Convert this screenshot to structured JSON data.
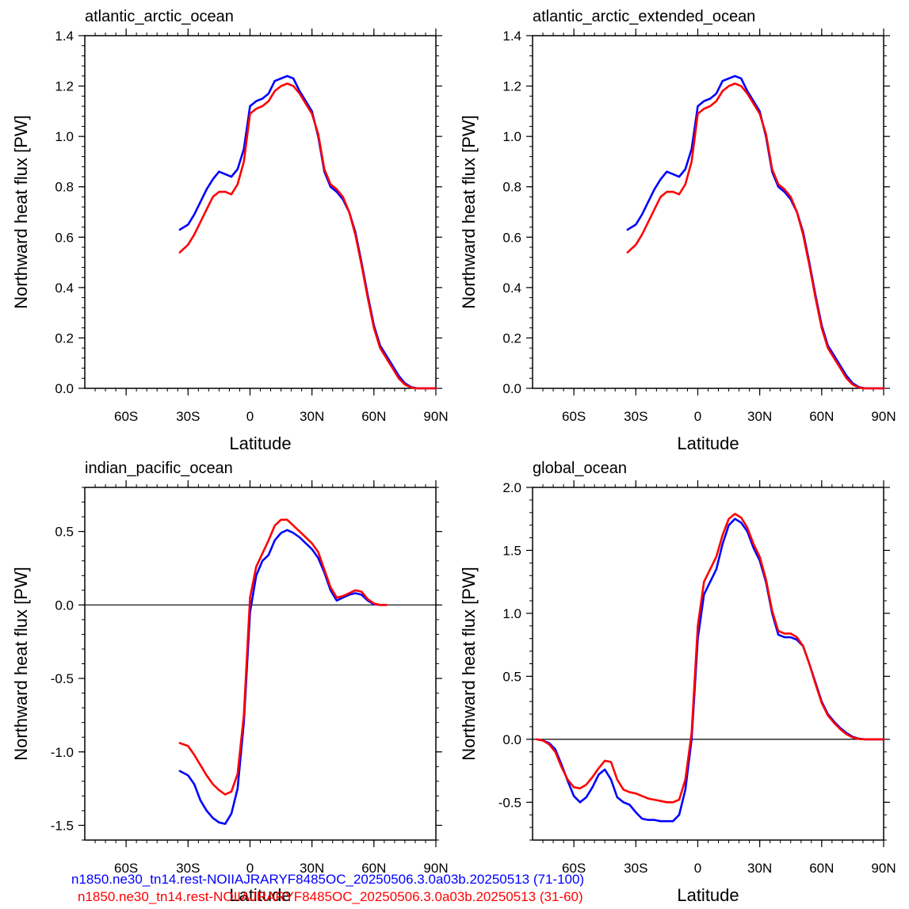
{
  "chart_data": [
    {
      "type": "line",
      "title": "atlantic_arctic_ocean",
      "xlabel": "Latitude",
      "ylabel": "Northward heat flux [PW]",
      "xlim": [
        -80,
        90
      ],
      "ylim": [
        0,
        1.4
      ],
      "xticks": [
        -60,
        -30,
        0,
        30,
        60,
        90
      ],
      "xtick_labels": [
        "60S",
        "30S",
        "0",
        "30N",
        "60N",
        "90N"
      ],
      "yticks": [
        0,
        0.2,
        0.4,
        0.6,
        0.8,
        1.0,
        1.2,
        1.4
      ],
      "ytick_labels": [
        "0.0",
        "0.2",
        "0.4",
        "0.6",
        "0.8",
        "1.0",
        "1.2",
        "1.4"
      ],
      "zero_line": false,
      "series": [
        {
          "name": "n1850.ne30_tn14.rest-NOIIAJRARYF8485OC_20250506.3.0a03b.20250513 (71-100)",
          "color": "#0000ff",
          "x": [
            -34,
            -30,
            -27,
            -24,
            -21,
            -18,
            -15,
            -12,
            -9,
            -6,
            -3,
            0,
            3,
            6,
            9,
            12,
            15,
            18,
            21,
            24,
            27,
            30,
            33,
            36,
            39,
            42,
            45,
            48,
            51,
            54,
            57,
            60,
            63,
            66,
            69,
            72,
            75,
            78,
            81,
            84,
            87,
            90
          ],
          "y": [
            0.63,
            0.65,
            0.69,
            0.74,
            0.79,
            0.83,
            0.86,
            0.85,
            0.84,
            0.87,
            0.95,
            1.12,
            1.14,
            1.15,
            1.17,
            1.22,
            1.23,
            1.24,
            1.23,
            1.18,
            1.14,
            1.1,
            1.0,
            0.86,
            0.8,
            0.78,
            0.75,
            0.7,
            0.62,
            0.5,
            0.37,
            0.25,
            0.17,
            0.13,
            0.09,
            0.05,
            0.02,
            0.005,
            0,
            0,
            0,
            0
          ]
        },
        {
          "name": "n1850.ne30_tn14.rest-NOIIAJRARYF8485OC_20250506.3.0a03b.20250513 (31-60)",
          "color": "#ff0000",
          "x": [
            -34,
            -30,
            -27,
            -24,
            -21,
            -18,
            -15,
            -12,
            -9,
            -6,
            -3,
            0,
            3,
            6,
            9,
            12,
            15,
            18,
            21,
            24,
            27,
            30,
            33,
            36,
            39,
            42,
            45,
            48,
            51,
            54,
            57,
            60,
            63,
            66,
            69,
            72,
            75,
            78,
            81,
            84,
            87,
            90
          ],
          "y": [
            0.54,
            0.57,
            0.61,
            0.66,
            0.71,
            0.76,
            0.78,
            0.78,
            0.77,
            0.81,
            0.9,
            1.09,
            1.11,
            1.12,
            1.14,
            1.18,
            1.2,
            1.21,
            1.2,
            1.17,
            1.13,
            1.09,
            1.01,
            0.87,
            0.81,
            0.79,
            0.76,
            0.7,
            0.61,
            0.49,
            0.36,
            0.24,
            0.16,
            0.12,
            0.08,
            0.04,
            0.015,
            0.003,
            0,
            0,
            0,
            0
          ]
        }
      ]
    },
    {
      "type": "line",
      "title": "atlantic_arctic_extended_ocean",
      "xlabel": "Latitude",
      "ylabel": "Northward heat flux [PW]",
      "xlim": [
        -80,
        90
      ],
      "ylim": [
        0,
        1.4
      ],
      "xticks": [
        -60,
        -30,
        0,
        30,
        60,
        90
      ],
      "xtick_labels": [
        "60S",
        "30S",
        "0",
        "30N",
        "60N",
        "90N"
      ],
      "yticks": [
        0,
        0.2,
        0.4,
        0.6,
        0.8,
        1.0,
        1.2,
        1.4
      ],
      "ytick_labels": [
        "0.0",
        "0.2",
        "0.4",
        "0.6",
        "0.8",
        "1.0",
        "1.2",
        "1.4"
      ],
      "zero_line": false,
      "series": [
        {
          "name": "n1850.ne30_tn14.rest-NOIIAJRARYF8485OC_20250506.3.0a03b.20250513 (71-100)",
          "color": "#0000ff",
          "x": [
            -34,
            -30,
            -27,
            -24,
            -21,
            -18,
            -15,
            -12,
            -9,
            -6,
            -3,
            0,
            3,
            6,
            9,
            12,
            15,
            18,
            21,
            24,
            27,
            30,
            33,
            36,
            39,
            42,
            45,
            48,
            51,
            54,
            57,
            60,
            63,
            66,
            69,
            72,
            75,
            78,
            81,
            84,
            87,
            90
          ],
          "y": [
            0.63,
            0.65,
            0.69,
            0.74,
            0.79,
            0.83,
            0.86,
            0.85,
            0.84,
            0.87,
            0.95,
            1.12,
            1.14,
            1.15,
            1.17,
            1.22,
            1.23,
            1.24,
            1.23,
            1.18,
            1.14,
            1.1,
            1.0,
            0.86,
            0.8,
            0.78,
            0.75,
            0.7,
            0.62,
            0.5,
            0.37,
            0.25,
            0.17,
            0.13,
            0.09,
            0.05,
            0.02,
            0.005,
            0,
            0,
            0,
            0
          ]
        },
        {
          "name": "n1850.ne30_tn14.rest-NOIIAJRARYF8485OC_20250506.3.0a03b.20250513 (31-60)",
          "color": "#ff0000",
          "x": [
            -34,
            -30,
            -27,
            -24,
            -21,
            -18,
            -15,
            -12,
            -9,
            -6,
            -3,
            0,
            3,
            6,
            9,
            12,
            15,
            18,
            21,
            24,
            27,
            30,
            33,
            36,
            39,
            42,
            45,
            48,
            51,
            54,
            57,
            60,
            63,
            66,
            69,
            72,
            75,
            78,
            81,
            84,
            87,
            90
          ],
          "y": [
            0.54,
            0.57,
            0.61,
            0.66,
            0.71,
            0.76,
            0.78,
            0.78,
            0.77,
            0.81,
            0.9,
            1.09,
            1.11,
            1.12,
            1.14,
            1.18,
            1.2,
            1.21,
            1.2,
            1.17,
            1.13,
            1.09,
            1.01,
            0.87,
            0.81,
            0.79,
            0.76,
            0.7,
            0.61,
            0.49,
            0.36,
            0.24,
            0.16,
            0.12,
            0.08,
            0.04,
            0.015,
            0.003,
            0,
            0,
            0,
            0
          ]
        }
      ]
    },
    {
      "type": "line",
      "title": "indian_pacific_ocean",
      "xlabel": "Latitude",
      "ylabel": "Northward heat flux [PW]",
      "xlim": [
        -80,
        90
      ],
      "ylim": [
        -1.6,
        0.8
      ],
      "xticks": [
        -60,
        -30,
        0,
        30,
        60,
        90
      ],
      "xtick_labels": [
        "60S",
        "30S",
        "0",
        "30N",
        "60N",
        "90N"
      ],
      "yticks": [
        -1.5,
        -1.0,
        -0.5,
        0.0,
        0.5
      ],
      "ytick_labels": [
        "-1.5",
        "-1.0",
        "-0.5",
        "0.0",
        "0.5"
      ],
      "zero_line": true,
      "series": [
        {
          "name": "n1850.ne30_tn14.rest-NOIIAJRARYF8485OC_20250506.3.0a03b.20250513 (71-100)",
          "color": "#0000ff",
          "x": [
            -34,
            -30,
            -27,
            -24,
            -21,
            -18,
            -15,
            -12,
            -9,
            -6,
            -3,
            0,
            3,
            6,
            9,
            12,
            15,
            18,
            21,
            24,
            27,
            30,
            33,
            36,
            39,
            42,
            45,
            48,
            51,
            54,
            57,
            60,
            63,
            66
          ],
          "y": [
            -1.13,
            -1.16,
            -1.22,
            -1.33,
            -1.4,
            -1.45,
            -1.48,
            -1.49,
            -1.42,
            -1.25,
            -0.8,
            -0.05,
            0.2,
            0.3,
            0.34,
            0.44,
            0.49,
            0.51,
            0.49,
            0.46,
            0.42,
            0.38,
            0.32,
            0.22,
            0.1,
            0.03,
            0.05,
            0.07,
            0.08,
            0.07,
            0.03,
            0.005,
            0,
            0
          ]
        },
        {
          "name": "n1850.ne30_tn14.rest-NOIIAJRARYF8485OC_20250506.3.0a03b.20250513 (31-60)",
          "color": "#ff0000",
          "x": [
            -34,
            -30,
            -27,
            -24,
            -21,
            -18,
            -15,
            -12,
            -9,
            -6,
            -3,
            0,
            3,
            6,
            9,
            12,
            15,
            18,
            21,
            24,
            27,
            30,
            33,
            36,
            39,
            42,
            45,
            48,
            51,
            54,
            57,
            60,
            63,
            66
          ],
          "y": [
            -0.94,
            -0.96,
            -1.02,
            -1.09,
            -1.16,
            -1.22,
            -1.26,
            -1.29,
            -1.27,
            -1.15,
            -0.75,
            0.05,
            0.26,
            0.35,
            0.44,
            0.54,
            0.58,
            0.58,
            0.54,
            0.5,
            0.46,
            0.42,
            0.36,
            0.24,
            0.12,
            0.05,
            0.06,
            0.08,
            0.1,
            0.09,
            0.04,
            0.01,
            0,
            0
          ]
        }
      ]
    },
    {
      "type": "line",
      "title": "global_ocean",
      "xlabel": "Latitude",
      "ylabel": "Northward heat flux [PW]",
      "xlim": [
        -80,
        90
      ],
      "ylim": [
        -0.8,
        2.0
      ],
      "xticks": [
        -60,
        -30,
        0,
        30,
        60,
        90
      ],
      "xtick_labels": [
        "60S",
        "30S",
        "0",
        "30N",
        "60N",
        "90N"
      ],
      "yticks": [
        -0.5,
        0.0,
        0.5,
        1.0,
        1.5,
        2.0
      ],
      "ytick_labels": [
        "-0.5",
        "0.0",
        "0.5",
        "1.0",
        "1.5",
        "2.0"
      ],
      "zero_line": true,
      "series": [
        {
          "name": "n1850.ne30_tn14.rest-NOIIAJRARYF8485OC_20250506.3.0a03b.20250513 (71-100)",
          "color": "#0000ff",
          "x": [
            -78,
            -75,
            -72,
            -69,
            -66,
            -63,
            -60,
            -57,
            -54,
            -51,
            -48,
            -45,
            -42,
            -39,
            -36,
            -33,
            -30,
            -27,
            -24,
            -21,
            -18,
            -15,
            -12,
            -9,
            -6,
            -3,
            0,
            3,
            6,
            9,
            12,
            15,
            18,
            21,
            24,
            27,
            30,
            33,
            36,
            39,
            42,
            45,
            48,
            51,
            54,
            57,
            60,
            63,
            66,
            69,
            72,
            75,
            78,
            81,
            84,
            87,
            90
          ],
          "y": [
            0,
            -0.01,
            -0.03,
            -0.08,
            -0.2,
            -0.33,
            -0.45,
            -0.5,
            -0.46,
            -0.38,
            -0.28,
            -0.24,
            -0.32,
            -0.46,
            -0.5,
            -0.52,
            -0.58,
            -0.63,
            -0.64,
            -0.64,
            -0.65,
            -0.65,
            -0.65,
            -0.6,
            -0.4,
            0.0,
            0.8,
            1.15,
            1.25,
            1.35,
            1.55,
            1.7,
            1.75,
            1.72,
            1.65,
            1.52,
            1.42,
            1.25,
            1.0,
            0.83,
            0.81,
            0.81,
            0.79,
            0.74,
            0.6,
            0.45,
            0.3,
            0.2,
            0.14,
            0.09,
            0.05,
            0.02,
            0.005,
            0,
            0,
            0,
            0
          ]
        },
        {
          "name": "n1850.ne30_tn14.rest-NOIIAJRARYF8485OC_20250506.3.0a03b.20250513 (31-60)",
          "color": "#ff0000",
          "x": [
            -78,
            -75,
            -72,
            -69,
            -66,
            -63,
            -60,
            -57,
            -54,
            -51,
            -48,
            -45,
            -42,
            -39,
            -36,
            -33,
            -30,
            -27,
            -24,
            -21,
            -18,
            -15,
            -12,
            -9,
            -6,
            -3,
            0,
            3,
            6,
            9,
            12,
            15,
            18,
            21,
            24,
            27,
            30,
            33,
            36,
            39,
            42,
            45,
            48,
            51,
            54,
            57,
            60,
            63,
            66,
            69,
            72,
            75,
            78,
            81,
            84,
            87,
            90
          ],
          "y": [
            0,
            -0.01,
            -0.04,
            -0.1,
            -0.22,
            -0.32,
            -0.38,
            -0.39,
            -0.36,
            -0.3,
            -0.23,
            -0.17,
            -0.18,
            -0.32,
            -0.4,
            -0.42,
            -0.43,
            -0.45,
            -0.47,
            -0.48,
            -0.49,
            -0.5,
            -0.5,
            -0.48,
            -0.32,
            0.05,
            0.9,
            1.25,
            1.35,
            1.45,
            1.62,
            1.75,
            1.79,
            1.76,
            1.68,
            1.55,
            1.45,
            1.27,
            1.02,
            0.86,
            0.84,
            0.84,
            0.81,
            0.74,
            0.6,
            0.44,
            0.29,
            0.19,
            0.13,
            0.08,
            0.04,
            0.015,
            0.003,
            0,
            0,
            0,
            0
          ]
        }
      ]
    }
  ],
  "legend": {
    "entries": [
      {
        "label": "n1850.ne30_tn14.rest-NOIIAJRARYF8485OC_20250506.3.0a03b.20250513 (71-100)",
        "color": "#0000ff"
      },
      {
        "label": "n1850.ne30_tn14.rest-NOIIAJRARYF8485OC_20250506.3.0a03b.20250513 (31-60)",
        "color": "#ff0000"
      }
    ]
  }
}
